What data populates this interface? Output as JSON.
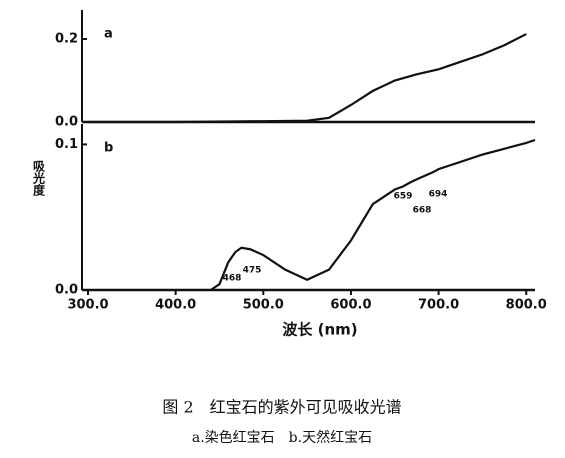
{
  "chart_data": [
    {
      "type": "line",
      "panel_label": "a",
      "x": [
        300,
        400,
        500,
        550,
        575,
        600,
        625,
        650,
        675,
        700,
        725,
        750,
        775,
        800
      ],
      "series": [
        {
          "name": "a",
          "color": "#111",
          "values": [
            0,
            0,
            0.002,
            0.003,
            0.01,
            0.041,
            0.075,
            0.1,
            0.115,
            0.127,
            0.145,
            0.163,
            0.185,
            0.212
          ]
        }
      ],
      "xlim": [
        300,
        810
      ],
      "ylim": [
        0,
        0.27
      ],
      "yticks": [
        {
          "value": 0,
          "label": "0.0"
        },
        0.2
      ]
    },
    {
      "type": "line",
      "panel_label": "b",
      "ylabel": "吸光度",
      "xlabel": "波长 (nm)",
      "x": [
        440,
        450,
        460,
        468,
        475,
        485,
        500,
        525,
        550,
        575,
        600,
        625,
        650,
        659,
        668,
        675,
        694,
        700,
        725,
        750,
        775,
        800,
        810
      ],
      "series": [
        {
          "name": "b",
          "color": "#111",
          "values": [
            0,
            0.004,
            0.019,
            0.026,
            0.029,
            0.028,
            0.024,
            0.014,
            0.007,
            0.014,
            0.034,
            0.059,
            0.069,
            0.071,
            0.074,
            0.076,
            0.081,
            0.083,
            0.088,
            0.093,
            0.097,
            0.101,
            0.103
          ]
        }
      ],
      "annotations": [
        "468",
        "475",
        "659",
        "668",
        "694"
      ],
      "xlim": [
        300,
        810
      ],
      "ylim": [
        0,
        0.114
      ],
      "xticks": [
        {
          "value": 300,
          "label": "300.0"
        },
        {
          "value": 400,
          "label": "400.0"
        },
        {
          "value": 500,
          "label": "500.0"
        },
        {
          "value": 600,
          "label": "600.0"
        },
        {
          "value": 700,
          "label": "700.0"
        },
        {
          "value": 800,
          "label": "800.0"
        }
      ],
      "yticks": [
        {
          "value": 0,
          "label": "0.0"
        },
        0.1
      ]
    }
  ],
  "caption": {
    "title": "图 2　红宝石的紫外可见吸收光谱",
    "subtitle": "a.染色红宝石　b.天然红宝石"
  }
}
